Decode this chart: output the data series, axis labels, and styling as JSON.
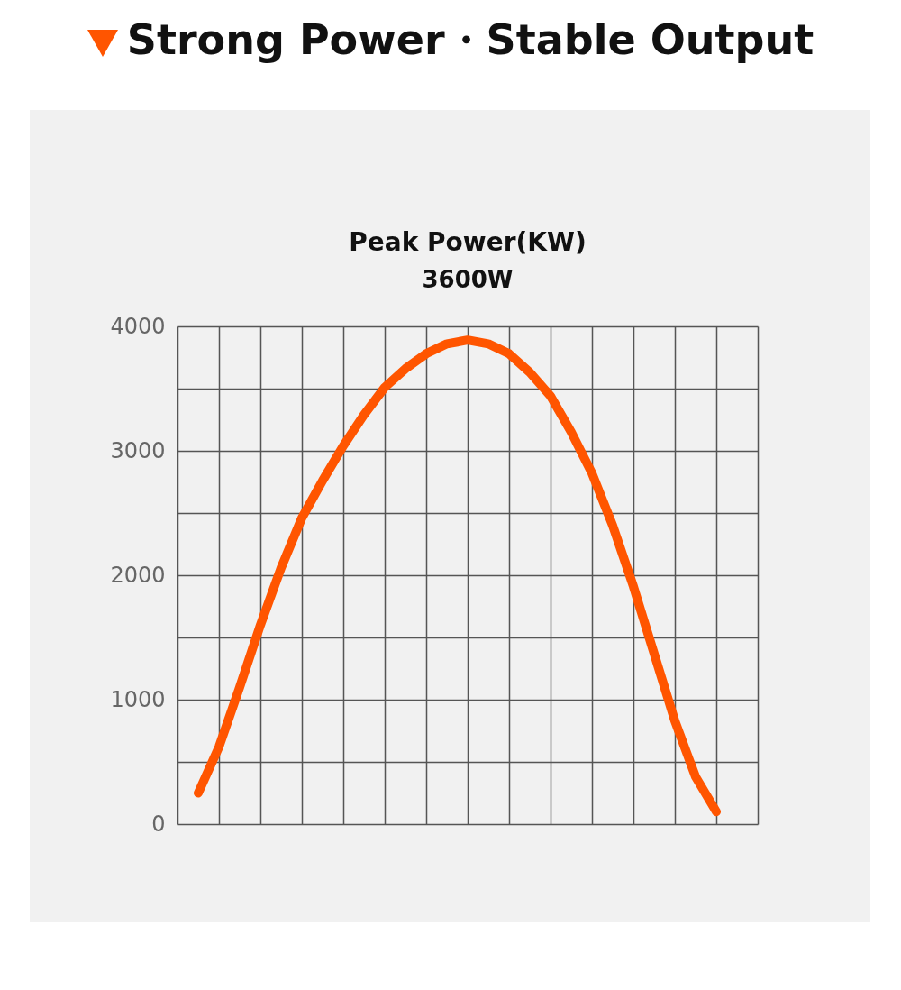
{
  "chart_data": {
    "type": "line",
    "title": "Peak Power(KW)",
    "subtitle": "3600W",
    "annotations": [
      "Strong Power・Stable Output"
    ],
    "categories": [
      null,
      null,
      null,
      null,
      null,
      null,
      null,
      null,
      null,
      null,
      null,
      null,
      null,
      null,
      null,
      null,
      null,
      null,
      null,
      null,
      null,
      null,
      null,
      null,
      null,
      null,
      null,
      null,
      null
    ],
    "series": [
      {
        "color": "#ff5500",
        "values": [
          null,
          250,
          620,
          1100,
          1600,
          2060,
          2460,
          2760,
          3040,
          3290,
          3510,
          3660,
          3780,
          3860,
          3890,
          3860,
          3780,
          3630,
          3440,
          3150,
          2820,
          2400,
          1910,
          1370,
          830,
          380,
          100,
          null,
          null
        ]
      }
    ],
    "ylim": [
      0,
      4000
    ],
    "yticks": [
      0,
      {
        "value": 500,
        "label": null
      },
      1000,
      {
        "value": 1500,
        "label": null
      },
      2000,
      {
        "value": 2500,
        "label": null
      },
      3000,
      {
        "value": 3500,
        "label": null
      },
      4000
    ],
    "tick_labels": "y",
    "grid": true,
    "line_style": "solid"
  }
}
